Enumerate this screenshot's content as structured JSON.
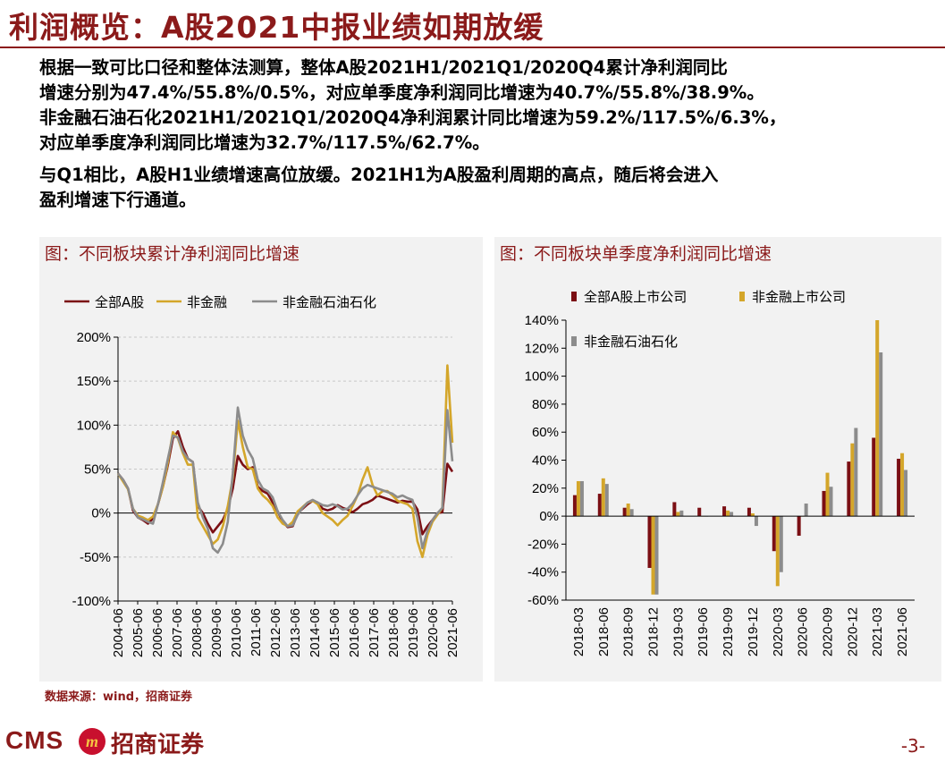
{
  "header": {
    "title": "利润概览：A股2021中报业绩如期放缓"
  },
  "body": {
    "p1_line1": "根据一致可比口径和整体法测算，整体A股2021H1/2021Q1/2020Q4累计净利润同比",
    "p1_line2": "增速分别为47.4%/55.8%/0.5%，对应单季度净利润同比增速为40.7%/55.8%/38.9%。",
    "p1_line3": "非金融石油石化2021H1/2021Q1/2020Q4净利润累计同比增速为59.2%/117.5%/6.3%，",
    "p1_line4": "对应单季度净利润同比增速为32.7%/117.5%/62.7%。",
    "p2_line1": "与Q1相比，A股H1业绩增速高位放缓。2021H1为A股盈利周期的高点，随后将会进入",
    "p2_line2": "盈利增速下行通道。"
  },
  "colors": {
    "brand": "#8b1a1a",
    "series_all": "#7b0f14",
    "series_nonfin": "#d4a62a",
    "series_nonfin_ex_oil": "#8c8c8c"
  },
  "chart_data": [
    {
      "type": "line",
      "title": "图：不同板块累计净利润同比增速",
      "ylim": [
        -100,
        200
      ],
      "y_ticks": [
        -100,
        -50,
        0,
        50,
        100,
        150,
        200
      ],
      "y_tick_labels": [
        "-100%",
        "-50%",
        "0%",
        "50%",
        "100%",
        "150%",
        "200%"
      ],
      "x_tick_labels": [
        "2004-06",
        "2005-06",
        "2006-06",
        "2007-06",
        "2008-06",
        "2009-06",
        "2010-06",
        "2011-06",
        "2012-06",
        "2013-06",
        "2014-06",
        "2015-06",
        "2016-06",
        "2017-06",
        "2018-06",
        "2019-06",
        "2020-06",
        "2021-06"
      ],
      "x_start": "2004-06",
      "x_step": "quarter",
      "grid": true,
      "legend": "top",
      "series": [
        {
          "name": "全部A股",
          "values": [
            45,
            38,
            28,
            3,
            -5,
            -8,
            -12,
            -6,
            10,
            30,
            55,
            85,
            93,
            75,
            62,
            58,
            8,
            0,
            -12,
            -22,
            -15,
            -8,
            5,
            28,
            65,
            55,
            50,
            52,
            30,
            25,
            22,
            12,
            2,
            -10,
            -16,
            -15,
            0,
            5,
            10,
            14,
            12,
            5,
            3,
            5,
            9,
            6,
            4,
            1,
            5,
            10,
            12,
            15,
            20,
            18,
            16,
            14,
            12,
            14,
            13,
            13,
            4,
            -24,
            -15,
            -8,
            0,
            1,
            56,
            47
          ]
        },
        {
          "name": "非金融",
          "values": [
            45,
            36,
            27,
            5,
            -3,
            -5,
            -8,
            -4,
            10,
            30,
            58,
            92,
            85,
            68,
            55,
            55,
            -5,
            -15,
            -25,
            -35,
            -30,
            -15,
            8,
            40,
            105,
            75,
            52,
            50,
            28,
            20,
            15,
            8,
            -5,
            -12,
            -15,
            -10,
            2,
            7,
            12,
            14,
            10,
            0,
            -4,
            -8,
            -14,
            -8,
            -3,
            8,
            20,
            38,
            52,
            32,
            20,
            25,
            25,
            20,
            14,
            12,
            10,
            5,
            -32,
            -50,
            -25,
            -10,
            -2,
            6,
            168,
            80
          ]
        },
        {
          "name": "非金融石油石化",
          "values": [
            45,
            38,
            28,
            5,
            -5,
            -7,
            -10,
            -12,
            10,
            35,
            62,
            88,
            86,
            70,
            62,
            58,
            12,
            -5,
            -18,
            -40,
            -45,
            -35,
            -10,
            45,
            120,
            88,
            72,
            62,
            38,
            28,
            25,
            18,
            2,
            -8,
            -15,
            -14,
            -2,
            6,
            12,
            15,
            12,
            9,
            8,
            10,
            8,
            4,
            5,
            11,
            20,
            28,
            32,
            30,
            28,
            26,
            24,
            22,
            18,
            20,
            17,
            15,
            -5,
            -40,
            -20,
            -8,
            0,
            6,
            117,
            59
          ]
        }
      ]
    },
    {
      "type": "bar",
      "title": "图：不同板块单季度净利润同比增速",
      "ylim": [
        -60,
        140
      ],
      "y_ticks": [
        -60,
        -40,
        -20,
        0,
        20,
        40,
        60,
        80,
        100,
        120,
        140
      ],
      "y_tick_labels": [
        "-60%",
        "-40%",
        "-20%",
        "0%",
        "20%",
        "40%",
        "60%",
        "80%",
        "100%",
        "120%",
        "140%"
      ],
      "categories": [
        "2018-03",
        "2018-06",
        "2018-09",
        "2018-12",
        "2019-03",
        "2019-06",
        "2019-09",
        "2019-12",
        "2020-03",
        "2020-06",
        "2020-09",
        "2020-12",
        "2021-03",
        "2021-06"
      ],
      "grid": false,
      "legend": "top-left",
      "series": [
        {
          "name": "全部A股上市公司",
          "values": [
            15,
            16,
            6,
            -37,
            10,
            6,
            7,
            6,
            -25,
            -14,
            18,
            39,
            56,
            41
          ]
        },
        {
          "name": "非金融上市公司",
          "values": [
            25,
            27,
            9,
            -56,
            3,
            0,
            4,
            2,
            -50,
            0,
            31,
            52,
            140,
            45
          ]
        },
        {
          "name": "非金融石油石化",
          "values": [
            25,
            23,
            5,
            -56,
            4,
            0,
            3,
            -7,
            -40,
            9,
            21,
            63,
            117,
            33
          ]
        }
      ]
    }
  ],
  "footer": {
    "source": "数据来源：wind，招商证券",
    "logo_text": "CMS",
    "logo_badge": "m",
    "logo_cn": "招商证券",
    "page_number": "-3-"
  }
}
